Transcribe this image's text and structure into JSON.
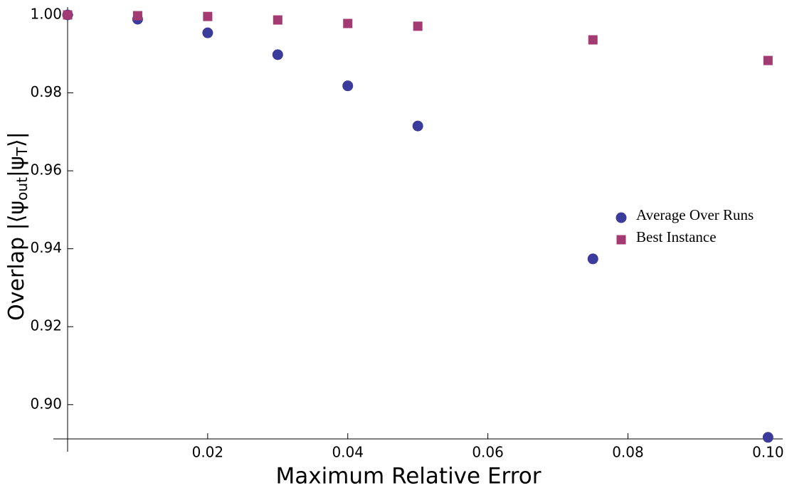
{
  "chart_data": {
    "type": "scatter",
    "x_label": "Maximum Relative Error",
    "y_label_parts": [
      "Overlap |⟨ψ",
      "out",
      "|ψ",
      "T",
      "⟩|"
    ],
    "x": [
      0,
      0.01,
      0.02,
      0.03,
      0.04,
      0.05,
      0.075,
      0.1
    ],
    "series": [
      {
        "name": "Average Over Runs",
        "color": "#3b3b9c",
        "marker": "circle",
        "values": [
          1.0,
          0.9989,
          0.9954,
          0.9898,
          0.9818,
          0.9715,
          0.9374,
          0.8916
        ]
      },
      {
        "name": "Best Instance",
        "color": "#a33a72",
        "marker": "square",
        "values": [
          1.0,
          0.9998,
          0.9996,
          0.9987,
          0.9978,
          0.9971,
          0.9936,
          0.9883
        ]
      }
    ],
    "xlim": [
      0,
      0.1021
    ],
    "ylim": [
      0.8912,
      1.002
    ],
    "xticks": [
      0.02,
      0.04,
      0.06,
      0.08,
      {
        "value": 0.1,
        "label": "0.10"
      }
    ],
    "yticks": [
      {
        "value": 0.9,
        "label": "0.90"
      },
      0.92,
      0.94,
      0.96,
      0.98,
      {
        "value": 1.0,
        "label": "1.00"
      }
    ],
    "grid": false,
    "legend": "right"
  }
}
